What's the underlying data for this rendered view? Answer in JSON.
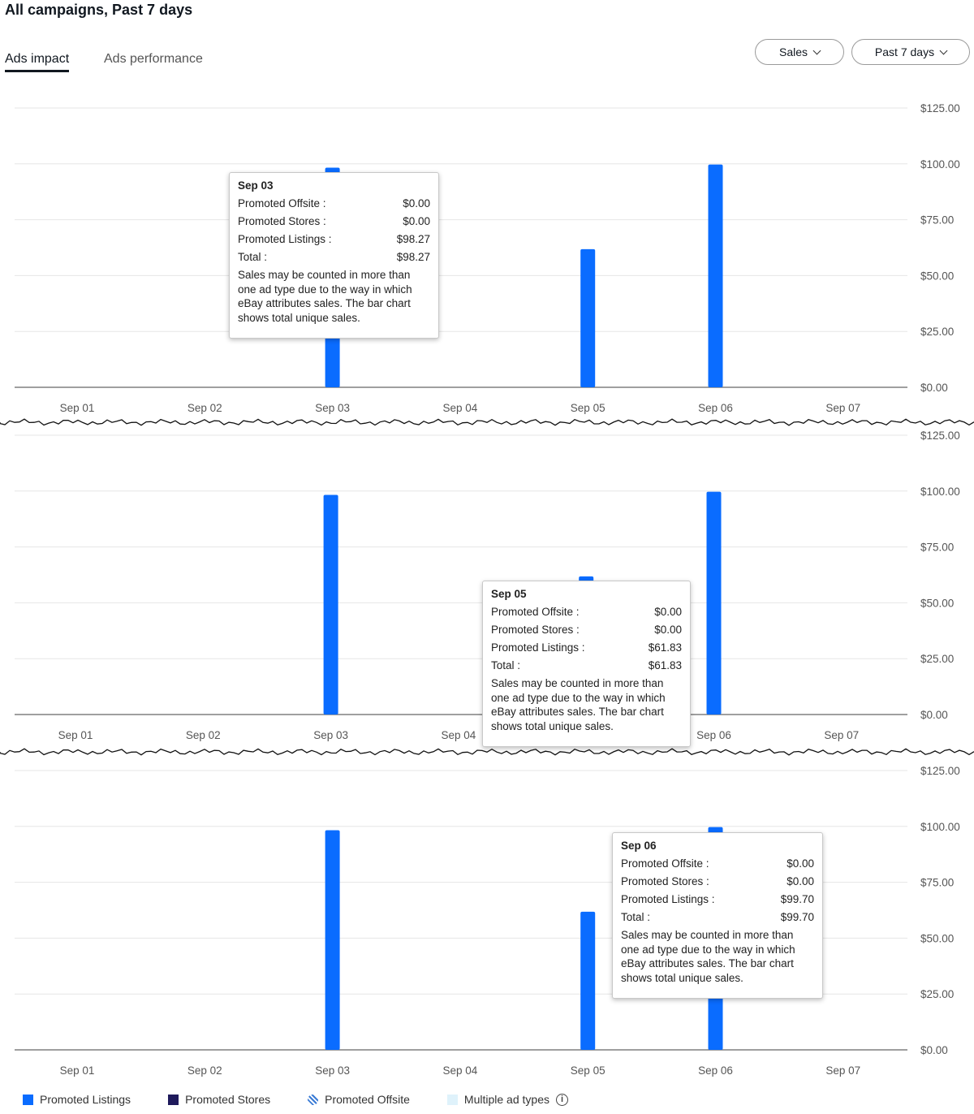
{
  "header": {
    "title": "All campaigns, Past 7 days"
  },
  "tabs": [
    {
      "label": "Ads impact",
      "active": true
    },
    {
      "label": "Ads performance",
      "active": false
    }
  ],
  "filters": {
    "metric": "Sales",
    "range": "Past 7 days"
  },
  "chart_data": {
    "type": "bar",
    "categories": [
      "Sep 01",
      "Sep 02",
      "Sep 03",
      "Sep 04",
      "Sep 05",
      "Sep 06",
      "Sep 07"
    ],
    "series": [
      {
        "name": "Promoted Listings",
        "values": [
          0,
          0,
          98.27,
          0,
          61.83,
          99.7,
          0
        ]
      }
    ],
    "ylim": [
      0,
      125
    ],
    "yticks": [
      "$0.00",
      "$25.00",
      "$50.00",
      "$75.00",
      "$100.00",
      "$125.00"
    ],
    "bar_color": "#0a6cff"
  },
  "tooltips": [
    {
      "date": "Sep 03",
      "rows": [
        {
          "label": "Promoted Offsite :",
          "value": "$0.00"
        },
        {
          "label": "Promoted Stores :",
          "value": "$0.00"
        },
        {
          "label": "Promoted Listings :",
          "value": "$98.27"
        },
        {
          "label": "Total :",
          "value": "$98.27"
        }
      ],
      "note": "Sales may be counted in more than one ad type due to the way in which eBay attributes sales. The bar chart shows total unique sales."
    },
    {
      "date": "Sep 05",
      "rows": [
        {
          "label": "Promoted Offsite :",
          "value": "$0.00"
        },
        {
          "label": "Promoted Stores :",
          "value": "$0.00"
        },
        {
          "label": "Promoted Listings :",
          "value": "$61.83"
        },
        {
          "label": "Total :",
          "value": "$61.83"
        }
      ],
      "note": "Sales may be counted in more than one ad type due to the way in which eBay attributes sales. The bar chart shows total unique sales."
    },
    {
      "date": "Sep 06",
      "rows": [
        {
          "label": "Promoted Offsite :",
          "value": "$0.00"
        },
        {
          "label": "Promoted Stores :",
          "value": "$0.00"
        },
        {
          "label": "Promoted Listings :",
          "value": "$99.70"
        },
        {
          "label": "Total :",
          "value": "$99.70"
        }
      ],
      "note": "Sales may be counted in more than one ad type due to the way in which eBay attributes sales. The bar chart shows total unique sales."
    }
  ],
  "legend": [
    {
      "label": "Promoted Listings",
      "color": "#0a6cff"
    },
    {
      "label": "Promoted Stores",
      "color": "#1f1a5c"
    },
    {
      "label": "Promoted Offsite",
      "color": "#3a7bd5"
    },
    {
      "label": "Multiple ad types",
      "color": "#dff2fb"
    }
  ],
  "icons": {
    "chevron": "chevron-down-icon",
    "info": "info-icon"
  }
}
